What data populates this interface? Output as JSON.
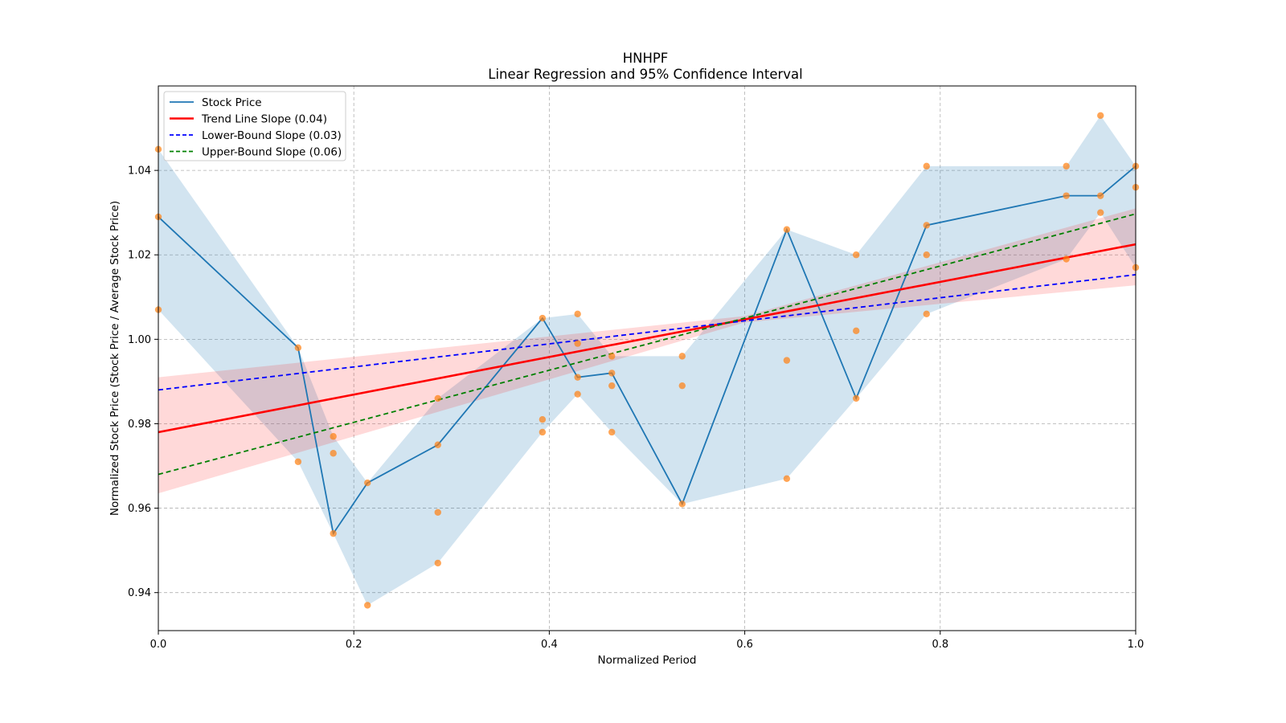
{
  "chart_data": {
    "type": "line",
    "title": "HNHPF",
    "subtitle": "Linear Regression and 95% Confidence Interval",
    "xlabel": "Normalized Period",
    "ylabel": "Normalized Stock Price (Stock Price / Average Stock Price)",
    "xlim": [
      0,
      1
    ],
    "ylim": [
      0.931,
      1.06
    ],
    "x_ticks": [
      "0.0",
      "0.2",
      "0.4",
      "0.6",
      "0.8",
      "1.0"
    ],
    "y_ticks": [
      "0.94",
      "0.96",
      "0.98",
      "1.00",
      "1.02",
      "1.04"
    ],
    "x_tick_values": [
      0,
      0.2,
      0.4,
      0.6,
      0.8,
      1.0
    ],
    "y_tick_values": [
      0.94,
      0.96,
      0.98,
      1.0,
      1.02,
      1.04
    ],
    "grid": true,
    "legend_position": "upper-left",
    "legend": [
      {
        "label": "Stock Price",
        "color": "#1f77b4",
        "style": "solid"
      },
      {
        "label": "Trend Line Slope (0.04)",
        "color": "#ff0000",
        "style": "solid"
      },
      {
        "label": "Lower-Bound Slope (0.03)",
        "color": "#0000ff",
        "style": "dashed"
      },
      {
        "label": "Upper-Bound Slope (0.06)",
        "color": "#008000",
        "style": "dashed"
      }
    ],
    "stock_price": {
      "name": "Stock Price",
      "x": [
        0.0,
        0.143,
        0.179,
        0.214,
        0.286,
        0.393,
        0.429,
        0.464,
        0.536,
        0.643,
        0.714,
        0.786,
        0.929,
        0.964,
        1.0
      ],
      "y": [
        1.029,
        0.998,
        0.954,
        0.966,
        0.975,
        1.005,
        0.991,
        0.992,
        0.961,
        1.026,
        0.986,
        1.027,
        1.034,
        1.034,
        1.041
      ]
    },
    "stock_band": {
      "x": [
        0.0,
        0.143,
        0.179,
        0.214,
        0.286,
        0.393,
        0.429,
        0.464,
        0.536,
        0.643,
        0.714,
        0.786,
        0.929,
        0.964,
        1.0
      ],
      "lower": [
        1.007,
        0.971,
        0.954,
        0.937,
        0.947,
        0.978,
        0.987,
        0.978,
        0.961,
        0.967,
        0.986,
        1.006,
        1.019,
        1.03,
        1.017
      ],
      "upper": [
        1.045,
        0.998,
        0.977,
        0.966,
        0.986,
        1.005,
        1.006,
        0.996,
        0.996,
        1.026,
        1.02,
        1.041,
        1.041,
        1.053,
        1.041
      ]
    },
    "scatter_points": {
      "x": [
        0.0,
        0.0,
        0.0,
        0.143,
        0.143,
        0.179,
        0.179,
        0.179,
        0.214,
        0.214,
        0.286,
        0.286,
        0.286,
        0.286,
        0.393,
        0.393,
        0.393,
        0.429,
        0.429,
        0.429,
        0.429,
        0.464,
        0.464,
        0.464,
        0.464,
        0.536,
        0.536,
        0.536,
        0.643,
        0.643,
        0.643,
        0.714,
        0.714,
        0.714,
        0.786,
        0.786,
        0.786,
        0.786,
        0.929,
        0.929,
        0.929,
        0.964,
        0.964,
        0.964,
        1.0,
        1.0,
        1.0
      ],
      "y": [
        1.045,
        1.029,
        1.007,
        0.998,
        0.971,
        0.977,
        0.973,
        0.954,
        0.966,
        0.937,
        0.986,
        0.975,
        0.959,
        0.947,
        1.005,
        0.981,
        0.978,
        1.006,
        0.999,
        0.991,
        0.987,
        0.996,
        0.992,
        0.989,
        0.978,
        0.996,
        0.989,
        0.961,
        1.026,
        0.995,
        0.967,
        1.02,
        1.002,
        0.986,
        1.041,
        1.027,
        1.02,
        1.006,
        1.041,
        1.034,
        1.019,
        1.053,
        1.034,
        1.03,
        1.041,
        1.036,
        1.017
      ]
    },
    "trend_line": {
      "name": "Trend Line Slope (0.04)",
      "x": [
        0,
        1
      ],
      "y": [
        0.978,
        1.0225
      ]
    },
    "trend_band": {
      "x": [
        0,
        0.6,
        1
      ],
      "lower": [
        0.9635,
        1.004,
        1.0128
      ],
      "upper": [
        0.991,
        1.0055,
        1.031
      ]
    },
    "lower_bound_line": {
      "name": "Lower-Bound Slope (0.03)",
      "x": [
        0,
        1
      ],
      "y": [
        0.988,
        1.0153
      ]
    },
    "upper_bound_line": {
      "name": "Upper-Bound Slope (0.06)",
      "x": [
        0,
        1
      ],
      "y": [
        0.968,
        1.0297
      ]
    }
  }
}
